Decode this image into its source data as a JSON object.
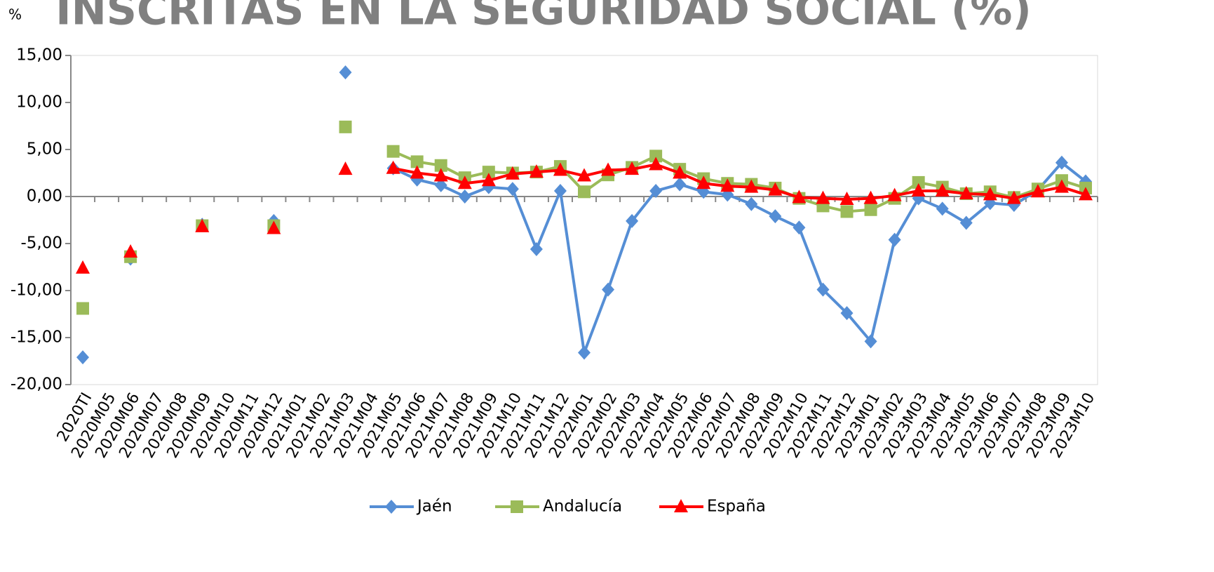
{
  "chart_data": {
    "type": "line",
    "title": "INSCRITAS EN LA SEGURIDAD SOCIAL (%)",
    "y_label": "%",
    "categories": [
      "2020TI",
      "2020M05",
      "2020M06",
      "2020M07",
      "2020M08",
      "2020M09",
      "2020M10",
      "2020M11",
      "2020M12",
      "2021M01",
      "2021M02",
      "2021M03",
      "2021M04",
      "2021M05",
      "2021M06",
      "2021M07",
      "2021M08",
      "2021M09",
      "2021M10",
      "2021M11",
      "2021M12",
      "2022M01",
      "2022M02",
      "2022M03",
      "2022M04",
      "2022M05",
      "2022M06",
      "2022M07",
      "2022M08",
      "2022M09",
      "2022M10",
      "2022M11",
      "2022M12",
      "2023M01",
      "2023M02",
      "2023M03",
      "2023M04",
      "2023M05",
      "2023M06",
      "2023M07",
      "2023M08",
      "2023M09",
      "2023M10"
    ],
    "series": [
      {
        "name": "Jaén",
        "color": "#558ed5",
        "marker": "diamond",
        "values": [
          -17.1,
          null,
          -6.6,
          null,
          null,
          -3.0,
          null,
          null,
          -2.6,
          null,
          null,
          13.2,
          null,
          3.0,
          1.8,
          1.2,
          0.0,
          1.0,
          0.8,
          -5.6,
          0.6,
          -16.6,
          -9.9,
          -2.6,
          0.6,
          1.3,
          0.5,
          0.2,
          -0.8,
          -2.1,
          -3.3,
          -9.9,
          -12.4,
          -15.4,
          -4.6,
          -0.2,
          -1.3,
          -2.8,
          -0.7,
          -0.9,
          0.7,
          3.6,
          1.6
        ]
      },
      {
        "name": "Andalucía",
        "color": "#9bbb59",
        "marker": "square",
        "values": [
          -11.9,
          null,
          -6.4,
          null,
          null,
          -3.1,
          null,
          null,
          -3.1,
          null,
          null,
          7.4,
          null,
          4.8,
          3.7,
          3.3,
          2.0,
          2.6,
          2.5,
          2.6,
          3.2,
          0.5,
          2.3,
          3.1,
          4.3,
          2.9,
          1.9,
          1.4,
          1.3,
          0.9,
          -0.2,
          -1.0,
          -1.6,
          -1.4,
          -0.2,
          1.5,
          1.0,
          0.3,
          0.5,
          -0.1,
          0.8,
          1.7,
          0.9
        ]
      },
      {
        "name": "España",
        "color": "#ff0000",
        "marker": "triangle",
        "values": [
          -7.6,
          null,
          -5.9,
          null,
          null,
          -3.2,
          null,
          null,
          -3.4,
          null,
          null,
          2.9,
          null,
          3.0,
          2.5,
          2.2,
          1.4,
          1.7,
          2.4,
          2.6,
          2.8,
          2.2,
          2.8,
          2.9,
          3.4,
          2.5,
          1.4,
          1.1,
          1.0,
          0.7,
          -0.1,
          -0.2,
          -0.3,
          -0.2,
          0.1,
          0.6,
          0.6,
          0.3,
          0.2,
          -0.2,
          0.5,
          1.0,
          0.2
        ]
      }
    ],
    "ylim": [
      -20,
      15
    ],
    "yticks": [
      {
        "value": -20,
        "label": "-20,00"
      },
      {
        "value": -15,
        "label": "-15,00"
      },
      {
        "value": -10,
        "label": "-10,00"
      },
      {
        "value": -5,
        "label": "-5,00"
      },
      {
        "value": 0,
        "label": "0,00"
      },
      {
        "value": 5,
        "label": "5,00"
      },
      {
        "value": 10,
        "label": "10,00"
      },
      {
        "value": 15,
        "label": "15,00"
      }
    ],
    "grid": false,
    "legend": "bottom"
  }
}
